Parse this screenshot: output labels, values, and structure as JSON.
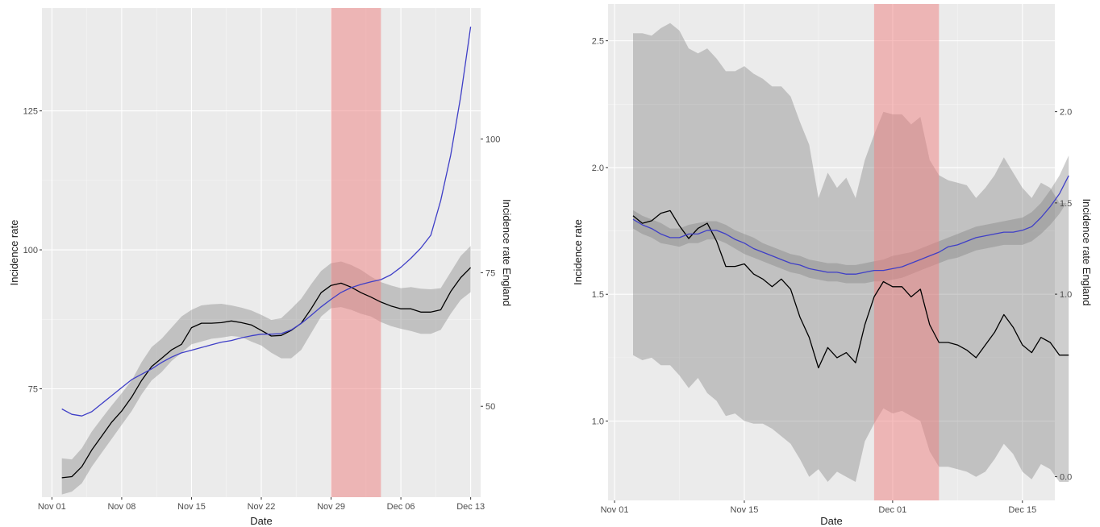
{
  "chart_data": [
    {
      "type": "line",
      "xlabel": "Date",
      "ylabel": "Incidence rate",
      "y2label": "Incidence rate England",
      "x_ticks": [
        "Nov 01",
        "Nov 08",
        "Nov 15",
        "Nov 22",
        "Nov 29",
        "Dec 06",
        "Dec 13"
      ],
      "x_tick_days": [
        0,
        7,
        14,
        21,
        28,
        35,
        42
      ],
      "xlim": [
        -1.0,
        43.0
      ],
      "y_ticks": [
        75,
        100,
        125
      ],
      "ylim": [
        55.5,
        143.5
      ],
      "y2_ticks": [
        50,
        75,
        100
      ],
      "y2lim": [
        33.0,
        124.5
      ],
      "grid": true,
      "highlight_band": {
        "x_start": 28,
        "x_end": 33,
        "color": "#f08080"
      },
      "series": [
        {
          "color": "#000000",
          "axis": "left",
          "x": [
            1,
            2,
            3,
            4,
            5,
            6,
            7,
            8,
            9,
            10,
            11,
            12,
            13,
            14,
            15,
            16,
            17,
            18,
            19,
            20,
            21,
            22,
            23,
            24,
            25,
            26,
            27,
            28,
            29,
            30,
            31,
            32,
            33,
            34,
            35,
            36,
            37,
            38,
            39,
            40,
            41,
            42
          ],
          "y": [
            59,
            59.2,
            61,
            64,
            66.5,
            69,
            71,
            73.5,
            76.5,
            79,
            80.5,
            82,
            83,
            86,
            86.8,
            86.8,
            86.9,
            87.2,
            86.9,
            86.5,
            85.5,
            84.5,
            84.6,
            85.5,
            86.8,
            89.4,
            92.3,
            93.6,
            94,
            93.3,
            92.3,
            91.5,
            90.6,
            89.9,
            89.4,
            89.4,
            88.8,
            88.8,
            89.2,
            92.5,
            95,
            96.8
          ],
          "band_low": [
            56,
            56.5,
            58,
            61,
            63.5,
            66,
            68.5,
            71,
            74,
            76.5,
            78,
            80,
            81.5,
            83,
            83.5,
            84,
            84.2,
            84.5,
            84.3,
            83.5,
            82.8,
            81.5,
            80.5,
            80.5,
            82,
            85,
            88,
            89.5,
            89.7,
            89.2,
            88.5,
            88,
            87,
            86.3,
            85.8,
            85.4,
            84.9,
            84.9,
            85.6,
            88.5,
            91,
            92.4
          ],
          "band_high": [
            62.5,
            62.3,
            64.3,
            67.3,
            69.7,
            72,
            74.2,
            76.5,
            79.8,
            82.5,
            84,
            86,
            88,
            89.2,
            90,
            90.2,
            90.3,
            90,
            89.6,
            89.1,
            88.3,
            87.4,
            87.7,
            89.4,
            91.2,
            93.8,
            96.2,
            97.6,
            97.9,
            97.3,
            96.4,
            95.2,
            94.2,
            93.6,
            93.1,
            93.3,
            93,
            92.9,
            93.1,
            96,
            98.9,
            100.7
          ]
        },
        {
          "color": "#3f3fc7",
          "axis": "right",
          "x": [
            1,
            2,
            3,
            4,
            5,
            6,
            7,
            8,
            9,
            10,
            11,
            12,
            13,
            14,
            15,
            16,
            17,
            18,
            19,
            20,
            21,
            22,
            23,
            24,
            25,
            26,
            27,
            28,
            29,
            30,
            31,
            32,
            33,
            34,
            35,
            36,
            37,
            38,
            39,
            40,
            41,
            42
          ],
          "y": [
            49.5,
            48.5,
            48.2,
            49,
            50.5,
            52,
            53.5,
            55,
            56,
            57,
            58.2,
            59.2,
            60,
            60.5,
            61,
            61.5,
            62,
            62.3,
            62.8,
            63.2,
            63.5,
            63.5,
            63.6,
            64.3,
            65.5,
            67,
            68.6,
            70,
            71.3,
            72.2,
            72.8,
            73.3,
            73.7,
            74.6,
            76,
            77.7,
            79.6,
            82,
            88.5,
            97,
            108,
            121
          ]
        }
      ]
    },
    {
      "type": "line",
      "xlabel": "Date",
      "ylabel": "Incidence rate",
      "y2label": "Incidence rate England",
      "x_ticks": [
        "Nov 01",
        "Nov 15",
        "Dec 01",
        "Dec 15"
      ],
      "x_tick_days": [
        0,
        14,
        30,
        44
      ],
      "xlim": [
        -0.7,
        47.5
      ],
      "y_ticks": [
        1.0,
        1.5,
        2.0,
        2.5
      ],
      "y_tick_labels": [
        "1.0",
        "1.5",
        "2.0",
        "2.5"
      ],
      "ylim": [
        0.687,
        2.645
      ],
      "y2_ticks": [
        0.0,
        1.0,
        1.5,
        2.0
      ],
      "y2_tick_labels": [
        "0.0",
        "1.0",
        "1.5",
        "2.0"
      ],
      "y2lim": [
        -0.13,
        2.59
      ],
      "grid": true,
      "highlight_band": {
        "x_start": 28,
        "x_end": 35,
        "color": "#f08080"
      },
      "series": [
        {
          "color": "#000000",
          "axis": "left",
          "x": [
            2,
            3,
            4,
            5,
            6,
            7,
            8,
            9,
            10,
            11,
            12,
            13,
            14,
            15,
            16,
            17,
            18,
            19,
            20,
            21,
            22,
            23,
            24,
            25,
            26,
            27,
            28,
            29,
            30,
            31,
            32,
            33,
            34,
            35,
            36,
            37,
            38,
            39,
            40,
            41,
            42,
            43,
            44,
            45,
            46,
            47,
            48,
            49
          ],
          "y": [
            1.81,
            1.78,
            1.79,
            1.82,
            1.83,
            1.77,
            1.72,
            1.76,
            1.78,
            1.71,
            1.61,
            1.61,
            1.62,
            1.58,
            1.56,
            1.53,
            1.56,
            1.52,
            1.41,
            1.33,
            1.21,
            1.29,
            1.25,
            1.27,
            1.23,
            1.38,
            1.49,
            1.55,
            1.53,
            1.53,
            1.49,
            1.52,
            1.38,
            1.31,
            1.31,
            1.3,
            1.28,
            1.25,
            1.3,
            1.35,
            1.42,
            1.37,
            1.3,
            1.27,
            1.33,
            1.31,
            1.26,
            1.26
          ],
          "band_low": [
            1.26,
            1.24,
            1.25,
            1.22,
            1.22,
            1.18,
            1.13,
            1.17,
            1.11,
            1.08,
            1.02,
            1.03,
            1.0,
            0.99,
            0.99,
            0.97,
            0.94,
            0.91,
            0.85,
            0.78,
            0.81,
            0.76,
            0.8,
            0.78,
            0.76,
            0.92,
            0.99,
            1.05,
            1.03,
            1.04,
            1.02,
            1.0,
            0.88,
            0.82,
            0.82,
            0.81,
            0.8,
            0.78,
            0.8,
            0.85,
            0.91,
            0.87,
            0.8,
            0.77,
            0.83,
            0.81,
            0.76,
            0.76
          ],
          "band_high": [
            2.53,
            2.53,
            2.52,
            2.55,
            2.57,
            2.54,
            2.47,
            2.45,
            2.47,
            2.43,
            2.38,
            2.38,
            2.4,
            2.37,
            2.35,
            2.32,
            2.32,
            2.28,
            2.18,
            2.09,
            1.88,
            1.98,
            1.92,
            1.96,
            1.88,
            2.03,
            2.13,
            2.22,
            2.21,
            2.21,
            2.17,
            2.2,
            2.03,
            1.97,
            1.95,
            1.94,
            1.93,
            1.88,
            1.92,
            1.97,
            2.04,
            1.98,
            1.92,
            1.88,
            1.94,
            1.92,
            1.86,
            1.86
          ]
        },
        {
          "color": "#3f3fc7",
          "axis": "right",
          "x": [
            2,
            3,
            4,
            5,
            6,
            7,
            8,
            9,
            10,
            11,
            12,
            13,
            14,
            15,
            16,
            17,
            18,
            19,
            20,
            21,
            22,
            23,
            24,
            25,
            26,
            27,
            28,
            29,
            30,
            31,
            32,
            33,
            34,
            35,
            36,
            37,
            38,
            39,
            40,
            41,
            42,
            43,
            44,
            45,
            46,
            47,
            48,
            49
          ],
          "y": [
            1.41,
            1.38,
            1.36,
            1.33,
            1.31,
            1.31,
            1.33,
            1.33,
            1.35,
            1.35,
            1.33,
            1.3,
            1.28,
            1.25,
            1.23,
            1.21,
            1.19,
            1.17,
            1.16,
            1.14,
            1.13,
            1.12,
            1.12,
            1.11,
            1.11,
            1.12,
            1.13,
            1.13,
            1.14,
            1.15,
            1.17,
            1.19,
            1.21,
            1.23,
            1.26,
            1.27,
            1.29,
            1.31,
            1.32,
            1.33,
            1.34,
            1.34,
            1.35,
            1.37,
            1.42,
            1.48,
            1.55,
            1.65
          ],
          "band_low": [
            1.36,
            1.33,
            1.31,
            1.28,
            1.27,
            1.26,
            1.28,
            1.28,
            1.3,
            1.3,
            1.28,
            1.25,
            1.22,
            1.2,
            1.18,
            1.16,
            1.14,
            1.12,
            1.11,
            1.09,
            1.08,
            1.07,
            1.07,
            1.06,
            1.06,
            1.06,
            1.07,
            1.07,
            1.08,
            1.09,
            1.11,
            1.13,
            1.15,
            1.17,
            1.19,
            1.2,
            1.22,
            1.24,
            1.25,
            1.26,
            1.27,
            1.27,
            1.27,
            1.29,
            1.33,
            1.38,
            1.44,
            1.52
          ],
          "band_high": [
            1.46,
            1.43,
            1.41,
            1.39,
            1.36,
            1.36,
            1.38,
            1.39,
            1.4,
            1.4,
            1.38,
            1.35,
            1.33,
            1.31,
            1.28,
            1.26,
            1.24,
            1.22,
            1.21,
            1.19,
            1.18,
            1.17,
            1.17,
            1.16,
            1.16,
            1.17,
            1.18,
            1.19,
            1.21,
            1.22,
            1.23,
            1.25,
            1.27,
            1.29,
            1.31,
            1.33,
            1.35,
            1.37,
            1.38,
            1.39,
            1.4,
            1.41,
            1.42,
            1.45,
            1.5,
            1.57,
            1.65,
            1.76
          ]
        }
      ]
    }
  ]
}
